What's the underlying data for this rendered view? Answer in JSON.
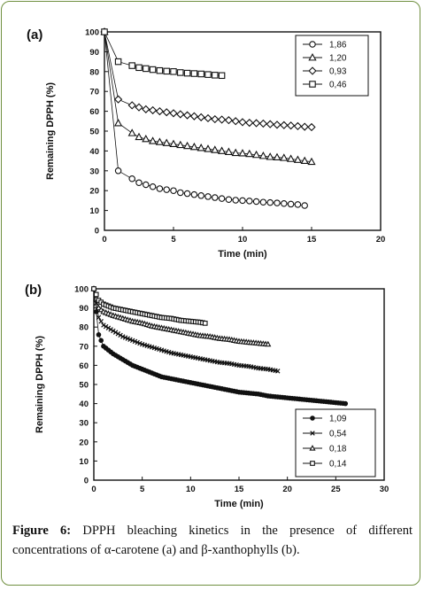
{
  "caption": {
    "figure_label": "Figure 6:",
    "text": "DPPH bleaching kinetics in the presence of different concentrations of α-carotene (a) and β-xanthophylls (b)."
  },
  "colors": {
    "frame": "#6f8f3f",
    "ink": "#111111"
  },
  "chart_data": [
    {
      "type": "scatter",
      "panel": "(a)",
      "xlabel": "Time (min)",
      "ylabel": "Remaining DPPH (%)",
      "xlim": [
        0,
        20
      ],
      "ylim": [
        0,
        100
      ],
      "xticks": [
        0,
        5,
        10,
        15,
        20
      ],
      "yticks": [
        0,
        10,
        20,
        30,
        40,
        50,
        60,
        70,
        80,
        90,
        100
      ],
      "grid": false,
      "legend_position": "top-right",
      "series": [
        {
          "name": "1,86",
          "marker": "circle",
          "x": [
            0,
            1,
            2,
            2.5,
            3,
            3.5,
            4,
            4.5,
            5,
            5.5,
            6,
            6.5,
            7,
            7.5,
            8,
            8.5,
            9,
            9.5,
            10,
            10.5,
            11,
            11.5,
            12,
            12.5,
            13,
            13.5,
            14,
            14.5
          ],
          "y": [
            100,
            30,
            26,
            24,
            23,
            22,
            21,
            20.5,
            20,
            19,
            18.5,
            18,
            17.5,
            17,
            16.5,
            16,
            15.5,
            15.2,
            15,
            14.8,
            14.5,
            14.2,
            14,
            13.8,
            13.5,
            13.2,
            13,
            12.5
          ]
        },
        {
          "name": "1,20",
          "marker": "triangle",
          "x": [
            0,
            1,
            2,
            2.5,
            3,
            3.5,
            4,
            4.5,
            5,
            5.5,
            6,
            6.5,
            7,
            7.5,
            8,
            8.5,
            9,
            9.5,
            10,
            10.5,
            11,
            11.5,
            12,
            12.5,
            13,
            13.5,
            14,
            14.5,
            15
          ],
          "y": [
            100,
            54,
            49,
            47,
            46,
            45,
            44.5,
            44,
            43.5,
            43,
            42.5,
            42,
            41.5,
            41,
            40.5,
            40,
            39.5,
            39,
            38.8,
            38.5,
            38,
            37.5,
            37,
            36.8,
            36.5,
            36,
            35.5,
            35,
            34.5
          ]
        },
        {
          "name": "0,93",
          "marker": "diamond",
          "x": [
            0,
            1,
            2,
            2.5,
            3,
            3.5,
            4,
            4.5,
            5,
            5.5,
            6,
            6.5,
            7,
            7.5,
            8,
            8.5,
            9,
            9.5,
            10,
            10.5,
            11,
            11.5,
            12,
            12.5,
            13,
            13.5,
            14,
            14.5,
            15
          ],
          "y": [
            100,
            66,
            63,
            62,
            61,
            60.5,
            60,
            59.5,
            59,
            58.5,
            58,
            57.5,
            57,
            56.5,
            56,
            55.8,
            55.5,
            55,
            54.5,
            54.2,
            54,
            53.8,
            53.5,
            53.2,
            53,
            52.8,
            52.5,
            52.2,
            52
          ]
        },
        {
          "name": "0,46",
          "marker": "square",
          "x": [
            0,
            1,
            2,
            2.5,
            3,
            3.5,
            4,
            4.5,
            5,
            5.5,
            6,
            6.5,
            7,
            7.5,
            8,
            8.5
          ],
          "y": [
            100,
            85,
            83,
            82,
            81.5,
            81,
            80.5,
            80.2,
            80,
            79.5,
            79.2,
            79,
            78.8,
            78.5,
            78.2,
            78
          ]
        }
      ]
    },
    {
      "type": "scatter",
      "panel": "(b)",
      "xlabel": "Time (min)",
      "ylabel": "Remaining DPPH (%)",
      "xlim": [
        0,
        30
      ],
      "ylim": [
        0,
        100
      ],
      "xticks": [
        0,
        5,
        10,
        15,
        20,
        25,
        30
      ],
      "yticks": [
        0,
        10,
        20,
        30,
        40,
        50,
        60,
        70,
        80,
        90,
        100
      ],
      "grid": false,
      "legend_position": "bottom-right",
      "series": [
        {
          "name": "1,09",
          "marker": "circle-cross",
          "x_end": 26,
          "x": [
            0,
            0.5,
            1,
            2,
            3,
            4,
            5,
            6,
            7,
            8,
            9,
            10,
            11,
            12,
            13,
            14,
            15,
            16,
            17,
            18,
            19,
            20,
            21,
            22,
            23,
            24,
            25,
            26
          ],
          "y": [
            100,
            76,
            70,
            66,
            63,
            60,
            58,
            56,
            54,
            53,
            52,
            51,
            50,
            49,
            48,
            47,
            46,
            45.5,
            45,
            44,
            43.5,
            43,
            42.5,
            42,
            41.5,
            41,
            40.5,
            40
          ]
        },
        {
          "name": "0,54",
          "marker": "cross",
          "x_end": 19,
          "x": [
            0,
            0.5,
            1,
            2,
            3,
            4,
            5,
            6,
            7,
            8,
            9,
            10,
            11,
            12,
            13,
            14,
            15,
            16,
            17,
            18,
            19
          ],
          "y": [
            100,
            85,
            81,
            78,
            75,
            73,
            71,
            69.5,
            68,
            66.5,
            65.5,
            64.5,
            63.5,
            62.5,
            61.5,
            61,
            60,
            59.5,
            58.5,
            58,
            57
          ]
        },
        {
          "name": "0,18",
          "marker": "triangle",
          "x_end": 18,
          "x": [
            0,
            0.5,
            1,
            2,
            3,
            4,
            5,
            6,
            7,
            8,
            9,
            10,
            11,
            12,
            13,
            14,
            15,
            16,
            17,
            18
          ],
          "y": [
            100,
            90,
            88,
            86,
            84.5,
            83,
            82,
            80.5,
            79.5,
            78.5,
            77.5,
            76.5,
            75.5,
            75,
            74,
            73.5,
            72.5,
            72,
            71.5,
            71
          ]
        },
        {
          "name": "0,14",
          "marker": "square",
          "x_end": 11.5,
          "x": [
            0,
            0.5,
            1,
            2,
            3,
            4,
            5,
            6,
            7,
            8,
            9,
            10,
            11,
            11.5
          ],
          "y": [
            100,
            94,
            92,
            90,
            89,
            88,
            87,
            86,
            85,
            84.5,
            83.5,
            83,
            82.5,
            82
          ]
        }
      ]
    }
  ]
}
